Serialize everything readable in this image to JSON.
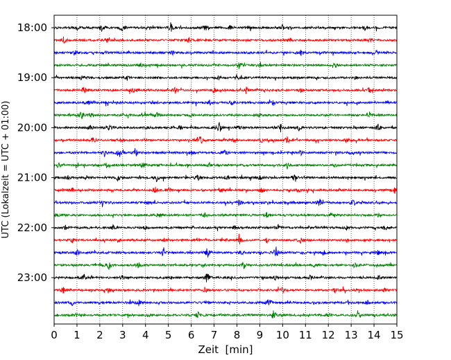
{
  "chart_data": {
    "type": "line",
    "title": "",
    "xlabel": "Zeit  [min]",
    "ylabel": "UTC (Lokalzeit = UTC + 01:00)",
    "xlim": [
      0,
      15
    ],
    "x_ticks": [
      0,
      1,
      2,
      3,
      4,
      5,
      6,
      7,
      8,
      9,
      10,
      11,
      12,
      13,
      14,
      15
    ],
    "x_tick_labels": [
      "0",
      "1",
      "2",
      "3",
      "4",
      "5",
      "6",
      "7",
      "8",
      "9",
      "10",
      "11",
      "12",
      "13",
      "14",
      "15"
    ],
    "y_tick_labels": [
      "18:00",
      "19:00",
      "20:00",
      "21:00",
      "22:00",
      "23:00"
    ],
    "y_tick_rows": [
      0,
      4,
      8,
      12,
      16,
      20
    ],
    "vertical_gridlines": "dotted",
    "rows_per_hour": 4,
    "minutes_per_row": 15,
    "row_colors": [
      "#000000",
      "#ff0000",
      "#0000ff",
      "#008000"
    ],
    "series": [
      {
        "start": "18:00",
        "bursts": [
          [
            1.0,
            4
          ],
          [
            2.1,
            6
          ],
          [
            3.0,
            5
          ],
          [
            5.1,
            7
          ],
          [
            6.6,
            4
          ],
          [
            7.7,
            3
          ],
          [
            8.5,
            3
          ],
          [
            10.0,
            4
          ],
          [
            13.6,
            4
          ]
        ]
      },
      {
        "start": "18:15",
        "bursts": [
          [
            0.4,
            6
          ],
          [
            2.3,
            3
          ],
          [
            5.9,
            3
          ],
          [
            10.3,
            4
          ],
          [
            13.8,
            4
          ]
        ]
      },
      {
        "start": "18:30",
        "bursts": [
          [
            0.9,
            3
          ],
          [
            2.3,
            3
          ],
          [
            5.2,
            3
          ],
          [
            10.8,
            5
          ],
          [
            14.1,
            3
          ]
        ]
      },
      {
        "start": "18:45",
        "bursts": [
          [
            3.8,
            3
          ],
          [
            8.1,
            5
          ],
          [
            9.0,
            3
          ],
          [
            12.3,
            3
          ]
        ]
      },
      {
        "start": "19:00",
        "bursts": [
          [
            1.2,
            4
          ],
          [
            3.2,
            3
          ],
          [
            7.2,
            3
          ],
          [
            8.0,
            4
          ],
          [
            13.2,
            3
          ]
        ]
      },
      {
        "start": "19:15",
        "bursts": [
          [
            1.3,
            5
          ],
          [
            3.5,
            7
          ],
          [
            5.3,
            4
          ],
          [
            7.0,
            4
          ],
          [
            8.4,
            5
          ],
          [
            10.8,
            3
          ],
          [
            13.8,
            4
          ]
        ]
      },
      {
        "start": "19:30",
        "bursts": [
          [
            1.5,
            3
          ],
          [
            4.3,
            3
          ],
          [
            6.8,
            4
          ],
          [
            7.8,
            3
          ],
          [
            9.6,
            3
          ]
        ]
      },
      {
        "start": "19:45",
        "bursts": [
          [
            1.2,
            7
          ],
          [
            1.6,
            4
          ],
          [
            4.5,
            4
          ],
          [
            6.0,
            3
          ],
          [
            9.0,
            3
          ],
          [
            13.8,
            5
          ]
        ]
      },
      {
        "start": "20:00",
        "bursts": [
          [
            1.6,
            5
          ],
          [
            2.4,
            5
          ],
          [
            4.1,
            3
          ],
          [
            5.5,
            4
          ],
          [
            7.2,
            9
          ],
          [
            8.1,
            4
          ],
          [
            9.9,
            7
          ],
          [
            10.7,
            5
          ],
          [
            14.2,
            6
          ]
        ]
      },
      {
        "start": "20:15",
        "bursts": [
          [
            1.7,
            4
          ],
          [
            2.9,
            3
          ],
          [
            6.4,
            6
          ],
          [
            7.9,
            4
          ],
          [
            9.1,
            3
          ],
          [
            10.2,
            5
          ],
          [
            12.8,
            4
          ]
        ]
      },
      {
        "start": "20:30",
        "bursts": [
          [
            2.2,
            6
          ],
          [
            2.8,
            5
          ],
          [
            3.6,
            4
          ],
          [
            6.0,
            4
          ],
          [
            7.5,
            4
          ],
          [
            10.8,
            4
          ]
        ]
      },
      {
        "start": "20:45",
        "bursts": [
          [
            0.2,
            4
          ],
          [
            2.3,
            3
          ],
          [
            3.9,
            5
          ],
          [
            6.8,
            3
          ],
          [
            10.2,
            5
          ],
          [
            12.3,
            3
          ]
        ]
      },
      {
        "start": "21:00",
        "bursts": [
          [
            0.6,
            4
          ],
          [
            2.8,
            5
          ],
          [
            4.5,
            6
          ],
          [
            6.3,
            5
          ],
          [
            7.6,
            4
          ],
          [
            9.0,
            4
          ],
          [
            10.5,
            4
          ]
        ]
      },
      {
        "start": "21:15",
        "bursts": [
          [
            0.8,
            3
          ],
          [
            4.4,
            6
          ],
          [
            5.0,
            4
          ],
          [
            7.3,
            5
          ],
          [
            9.1,
            5
          ],
          [
            10.7,
            3
          ],
          [
            14.9,
            5
          ]
        ]
      },
      {
        "start": "21:30",
        "bursts": [
          [
            2.1,
            3
          ],
          [
            4.1,
            3
          ],
          [
            8.1,
            6
          ],
          [
            11.6,
            7
          ],
          [
            13.1,
            5
          ]
        ]
      },
      {
        "start": "21:45",
        "bursts": [
          [
            0.1,
            3
          ],
          [
            4.6,
            5
          ],
          [
            6.6,
            3
          ],
          [
            9.3,
            4
          ],
          [
            12.1,
            3
          ],
          [
            14.2,
            3
          ]
        ]
      },
      {
        "start": "22:00",
        "bursts": [
          [
            0.5,
            3
          ],
          [
            2.6,
            4
          ],
          [
            4.0,
            3
          ],
          [
            7.9,
            3
          ],
          [
            9.8,
            4
          ],
          [
            12.8,
            3
          ],
          [
            14.5,
            4
          ]
        ]
      },
      {
        "start": "22:15",
        "bursts": [
          [
            0.8,
            3
          ],
          [
            2.8,
            3
          ],
          [
            4.8,
            3
          ],
          [
            8.1,
            9
          ],
          [
            9.3,
            4
          ],
          [
            10.8,
            4
          ],
          [
            12.8,
            3
          ]
        ]
      },
      {
        "start": "22:30",
        "bursts": [
          [
            1.0,
            4
          ],
          [
            4.8,
            7
          ],
          [
            6.7,
            8
          ],
          [
            8.2,
            3
          ],
          [
            9.7,
            10
          ],
          [
            11.8,
            3
          ],
          [
            14.2,
            4
          ]
        ]
      },
      {
        "start": "22:45",
        "bursts": [
          [
            2.4,
            7
          ],
          [
            3.7,
            4
          ],
          [
            6.5,
            3
          ],
          [
            8.3,
            5
          ],
          [
            11.4,
            3
          ],
          [
            13.2,
            3
          ]
        ]
      },
      {
        "start": "23:00",
        "bursts": [
          [
            1.3,
            5
          ],
          [
            3.0,
            3
          ],
          [
            5.1,
            3
          ],
          [
            6.7,
            9
          ],
          [
            9.7,
            4
          ],
          [
            11.2,
            5
          ],
          [
            14.2,
            3
          ]
        ]
      },
      {
        "start": "23:15",
        "bursts": [
          [
            0.4,
            4
          ],
          [
            2.4,
            3
          ],
          [
            6.6,
            4
          ],
          [
            10.0,
            4
          ],
          [
            12.3,
            3
          ],
          [
            14.5,
            4
          ]
        ]
      },
      {
        "start": "23:30",
        "bursts": [
          [
            0.8,
            3
          ],
          [
            3.7,
            4
          ],
          [
            6.7,
            3
          ],
          [
            9.4,
            8
          ],
          [
            11.4,
            3
          ],
          [
            13.7,
            3
          ]
        ]
      },
      {
        "start": "23:45",
        "bursts": [
          [
            1.0,
            3
          ],
          [
            4.1,
            3
          ],
          [
            6.3,
            4
          ],
          [
            9.6,
            7
          ],
          [
            12.0,
            3
          ],
          [
            13.3,
            3
          ]
        ]
      }
    ]
  }
}
